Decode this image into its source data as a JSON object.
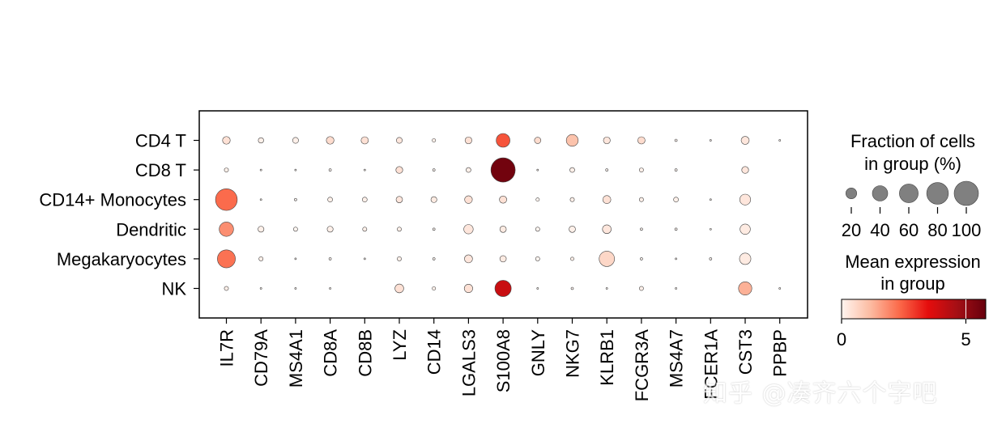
{
  "chart_data": {
    "type": "dotplot",
    "genes": [
      "IL7R",
      "CD79A",
      "MS4A1",
      "CD8A",
      "CD8B",
      "LYZ",
      "CD14",
      "LGALS3",
      "S100A8",
      "GNLY",
      "NKG7",
      "KLRB1",
      "FCGR3A",
      "MS4A7",
      "FCER1A",
      "CST3",
      "PPBP"
    ],
    "groups": [
      "CD4 T",
      "CD8 T",
      "CD14+ Monocytes",
      "Dendritic",
      "Megakaryocytes",
      "NK"
    ],
    "fraction_percent": [
      [
        10,
        5,
        6,
        10,
        9,
        6,
        2,
        8,
        32,
        7,
        24,
        8,
        9,
        1,
        0.5,
        11,
        0.5
      ],
      [
        3,
        0.5,
        0.5,
        1,
        0.5,
        8,
        1,
        4,
        100,
        0.5,
        4,
        1,
        3,
        1,
        0,
        8,
        0
      ],
      [
        80,
        0.5,
        1,
        4,
        4,
        7,
        6,
        10,
        9,
        2,
        3,
        11,
        3,
        4,
        0.5,
        20,
        0
      ],
      [
        35,
        6,
        3,
        6,
        3,
        3,
        1,
        15,
        7,
        3,
        7,
        13,
        1,
        1,
        0.5,
        18,
        0
      ],
      [
        55,
        3,
        0.5,
        1,
        0.5,
        3,
        1,
        11,
        7,
        3,
        2,
        40,
        1,
        0.5,
        1,
        22,
        0
      ],
      [
        3,
        0.5,
        0.5,
        0.5,
        0,
        13,
        2,
        12,
        45,
        0.5,
        1,
        0.5,
        3,
        0.5,
        0,
        30,
        0.5
      ]
    ],
    "mean_expression": [
      [
        0.4,
        0.1,
        0.1,
        0.5,
        0.4,
        0.3,
        0.1,
        0.4,
        2.6,
        0.5,
        1.0,
        0.3,
        0.5,
        0,
        0,
        0.3,
        0
      ],
      [
        0.1,
        0,
        0,
        0,
        0,
        0.4,
        0,
        0.1,
        5.6,
        0,
        0.1,
        0,
        0.1,
        0,
        0,
        0.3,
        0
      ],
      [
        2.3,
        0,
        0,
        0.1,
        0.1,
        0.3,
        0.2,
        0.4,
        0.4,
        0,
        0.1,
        0.4,
        0.1,
        0.1,
        0,
        0.3,
        0
      ],
      [
        1.8,
        0.1,
        0,
        0.1,
        0.1,
        0.1,
        0,
        0.3,
        0.2,
        0,
        0.1,
        0.3,
        0,
        0,
        0,
        0.2,
        0
      ],
      [
        2.2,
        0.1,
        0,
        0,
        0,
        0.1,
        0,
        0.3,
        0.2,
        0,
        0.1,
        0.6,
        0,
        0,
        0,
        0.2,
        0
      ],
      [
        0.1,
        0,
        0,
        0,
        0,
        0.4,
        0.1,
        0.4,
        4.0,
        0,
        0,
        0,
        0.1,
        0,
        0,
        1.3,
        0
      ]
    ],
    "size_legend": {
      "title_lines": [
        "Fraction of cells",
        "in group (%)"
      ],
      "values": [
        20,
        40,
        60,
        80,
        100
      ]
    },
    "color_legend": {
      "title_lines": [
        "Mean expression",
        "in group"
      ],
      "vmin": 0,
      "vmax": 5.8,
      "ticks": [
        0,
        5
      ],
      "colormap": "Reds",
      "colors": [
        "#fff5f0",
        "#fcbba1",
        "#fb6a4a",
        "#e50d0d",
        "#a50f15",
        "#67000d"
      ]
    }
  },
  "watermark": "知乎 @凑齐六个字吧"
}
